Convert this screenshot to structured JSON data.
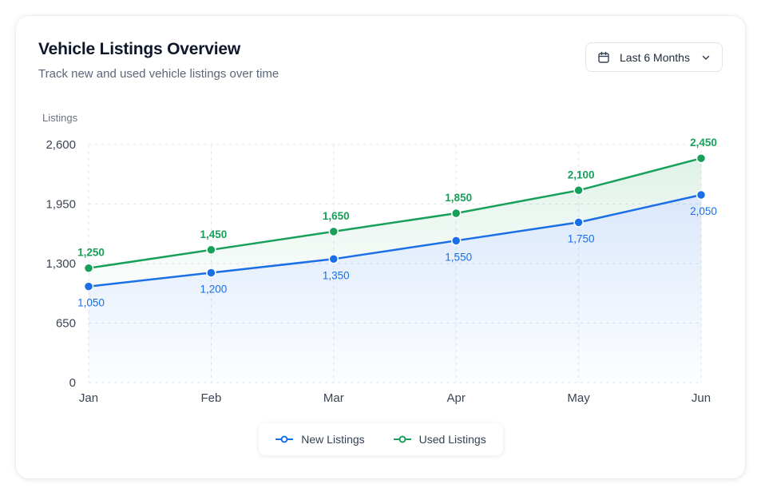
{
  "header": {
    "title": "Vehicle Listings Overview",
    "subtitle": "Track new and used vehicle listings over time"
  },
  "range_select": {
    "selected": "Last 6 Months",
    "icon": "calendar-icon"
  },
  "colors": {
    "new": "#1a6fe6",
    "used": "#18a05a",
    "grid": "#e3e7ee",
    "axis_text": "#3b4454"
  },
  "legend": {
    "items": [
      {
        "label": "New Listings",
        "color": "#1a6fe6"
      },
      {
        "label": "Used Listings",
        "color": "#18a05a"
      }
    ]
  },
  "chart_data": {
    "type": "area",
    "title": "Vehicle Listings Overview",
    "ylabel": "Listings",
    "xlabel": "",
    "categories": [
      "Jan",
      "Feb",
      "Mar",
      "Apr",
      "May",
      "Jun"
    ],
    "ylim": [
      0,
      2600
    ],
    "yticks": [
      0,
      650,
      1300,
      1950,
      2600
    ],
    "ytick_labels": [
      "0",
      "650",
      "1,300",
      "1,950",
      "2,600"
    ],
    "grid": true,
    "legend_position": "bottom-center",
    "series": [
      {
        "name": "New Listings",
        "values": [
          1050,
          1200,
          1350,
          1550,
          1750,
          2050
        ],
        "labels": [
          "1,050",
          "1,200",
          "1,350",
          "1,550",
          "1,750",
          "2,050"
        ]
      },
      {
        "name": "Used Listings",
        "values": [
          1250,
          1450,
          1650,
          1850,
          2100,
          2450
        ],
        "labels": [
          "1,250",
          "1,450",
          "1,650",
          "1,850",
          "2,100",
          "2,450"
        ]
      }
    ]
  }
}
